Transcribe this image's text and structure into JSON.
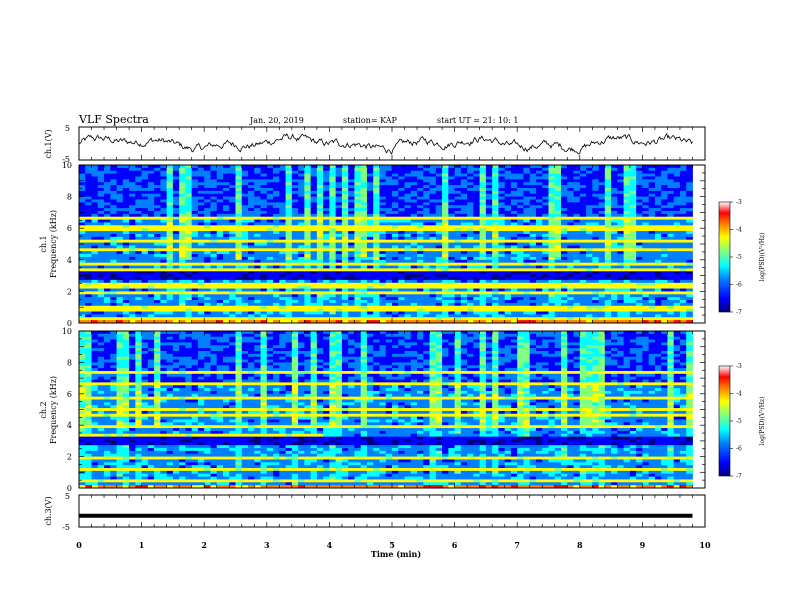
{
  "header": {
    "title": "VLF Spectra",
    "date": "Jan. 20, 2019",
    "station": "station= KAP",
    "start": "start  UT =   21: 10: 1"
  },
  "colors": {
    "colormap": [
      "#000080",
      "#0000ff",
      "#0080ff",
      "#00ffff",
      "#80ff80",
      "#ffff00",
      "#ff8000",
      "#ff0000",
      "#ffffff"
    ],
    "frame": "#000000",
    "trace": "#000000"
  },
  "chart_data": [
    {
      "type": "line",
      "title": "VLF Spectra",
      "ylabel": "ch.1(V)",
      "ylim": [
        -5,
        5
      ],
      "yticks": [
        "5",
        "-5"
      ],
      "xlim": [
        0,
        10
      ],
      "note": "Noisy waveform oscillating roughly between -2 and +2 V over the full interval"
    },
    {
      "type": "heatmap",
      "ylabel": "ch.1\nFrequency (kHz)",
      "ylim": [
        0,
        10
      ],
      "yticks": [
        "0",
        "2",
        "4",
        "6",
        "8",
        "10"
      ],
      "xlim": [
        0,
        10
      ],
      "colorbar": {
        "label": "log(PSD)(V²/Hz)",
        "ticks": [
          "-3",
          "-4",
          "-5",
          "-6",
          "-7"
        ],
        "range": [
          -7,
          -3
        ]
      },
      "bands_khz": [
        0.3,
        0.9,
        1.9,
        2.3,
        2.5,
        3.0,
        3.3,
        3.8,
        4.6,
        5.2,
        6.0,
        6.6
      ],
      "step_change_time_min": 3.9
    },
    {
      "type": "heatmap",
      "ylabel": "ch.2\nFrequency (kHz)",
      "ylim": [
        0,
        10
      ],
      "yticks": [
        "0",
        "2",
        "4",
        "6",
        "8",
        "10"
      ],
      "xlim": [
        0,
        10
      ],
      "colorbar": {
        "label": "log(PSD)(V²/Hz)",
        "ticks": [
          "-3",
          "-4",
          "-5",
          "-6",
          "-7"
        ],
        "range": [
          -7,
          -3
        ]
      },
      "bands_khz": [
        0.1,
        0.4,
        1.2,
        1.9,
        2.8,
        3.1,
        3.4,
        3.9,
        4.6,
        5.0,
        5.8,
        6.6,
        7.4
      ],
      "step_change_time_min": 3.9
    },
    {
      "type": "line",
      "ylabel": "ch.3(V)",
      "ylim": [
        -5,
        5
      ],
      "yticks": [
        "5",
        "-5"
      ],
      "xlim": [
        0,
        10
      ],
      "xlabel": "Time  (min)",
      "xticks": [
        "0",
        "1",
        "2",
        "3",
        "4",
        "5",
        "6",
        "7",
        "8",
        "9",
        "10"
      ],
      "x": [
        0,
        9.8
      ],
      "y": [
        -1.5,
        -1.5
      ]
    }
  ]
}
